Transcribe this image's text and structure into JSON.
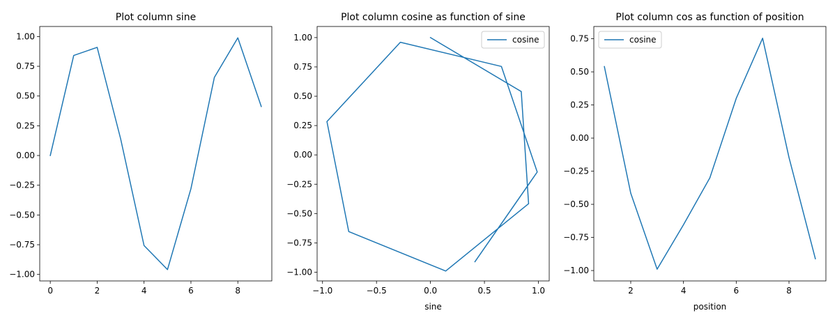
{
  "chart_data": [
    {
      "type": "line",
      "title": "Plot column sine",
      "xlabel": "",
      "ylabel": "",
      "xlim": [
        -0.45,
        9.45
      ],
      "ylim": [
        -1.0545,
        1.0845
      ],
      "xticks": [
        0,
        2,
        4,
        6,
        8
      ],
      "xtick_labels": [
        "0",
        "2",
        "4",
        "6",
        "8"
      ],
      "yticks": [
        -1.0,
        -0.75,
        -0.5,
        -0.25,
        0.0,
        0.25,
        0.5,
        0.75,
        1.0
      ],
      "ytick_labels": [
        "−1.00",
        "−0.75",
        "−0.50",
        "−0.25",
        "0.00",
        "0.25",
        "0.50",
        "0.75",
        "1.00"
      ],
      "grid": false,
      "legend": null,
      "color": "#1f77b4",
      "series": [
        {
          "name": "",
          "x": [
            0,
            1,
            2,
            3,
            4,
            5,
            6,
            7,
            8,
            9
          ],
          "y": [
            0.0,
            0.841,
            0.909,
            0.141,
            -0.757,
            -0.959,
            -0.279,
            0.657,
            0.989,
            0.412
          ]
        }
      ]
    },
    {
      "type": "line",
      "title": "Plot column cosine as function of sine",
      "xlabel": "sine",
      "ylabel": "",
      "xlim": [
        -1.05,
        1.1
      ],
      "ylim": [
        -1.0745,
        1.0945
      ],
      "xticks": [
        -1.0,
        -0.5,
        0.0,
        0.5,
        1.0
      ],
      "xtick_labels": [
        "−1.0",
        "−0.5",
        "0.0",
        "0.5",
        "1.0"
      ],
      "yticks": [
        -1.0,
        -0.75,
        -0.5,
        -0.25,
        0.0,
        0.25,
        0.5,
        0.75,
        1.0
      ],
      "ytick_labels": [
        "−1.00",
        "−0.75",
        "−0.50",
        "−0.25",
        "0.00",
        "0.25",
        "0.50",
        "0.75",
        "1.00"
      ],
      "grid": false,
      "legend": "top-right",
      "color": "#1f77b4",
      "series": [
        {
          "name": "cosine",
          "x": [
            0.0,
            0.841,
            0.909,
            0.141,
            -0.757,
            -0.959,
            -0.279,
            0.657,
            0.989,
            0.412
          ],
          "y": [
            1.0,
            0.54,
            -0.416,
            -0.99,
            -0.654,
            0.284,
            0.96,
            0.754,
            -0.146,
            -0.911
          ]
        }
      ]
    },
    {
      "type": "line",
      "title": "Plot column cos as function of position",
      "xlabel": "position",
      "ylabel": "",
      "xlim": [
        0.6,
        9.4
      ],
      "ylim": [
        -1.0785,
        0.8425
      ],
      "xticks": [
        2,
        4,
        6,
        8
      ],
      "xtick_labels": [
        "2",
        "4",
        "6",
        "8"
      ],
      "yticks": [
        -1.0,
        -0.75,
        -0.5,
        -0.25,
        0.0,
        0.25,
        0.5,
        0.75
      ],
      "ytick_labels": [
        "−1.00",
        "−0.75",
        "−0.50",
        "−0.25",
        "0.00",
        "0.25",
        "0.50",
        "0.75"
      ],
      "grid": false,
      "legend": "top-left",
      "color": "#1f77b4",
      "series": [
        {
          "name": "cosine",
          "x": [
            1,
            2,
            3,
            4,
            5,
            6,
            7,
            8,
            9
          ],
          "y": [
            0.54,
            -0.416,
            -0.99,
            -0.654,
            -0.3,
            0.3,
            0.754,
            -0.146,
            -0.911
          ]
        }
      ]
    }
  ]
}
